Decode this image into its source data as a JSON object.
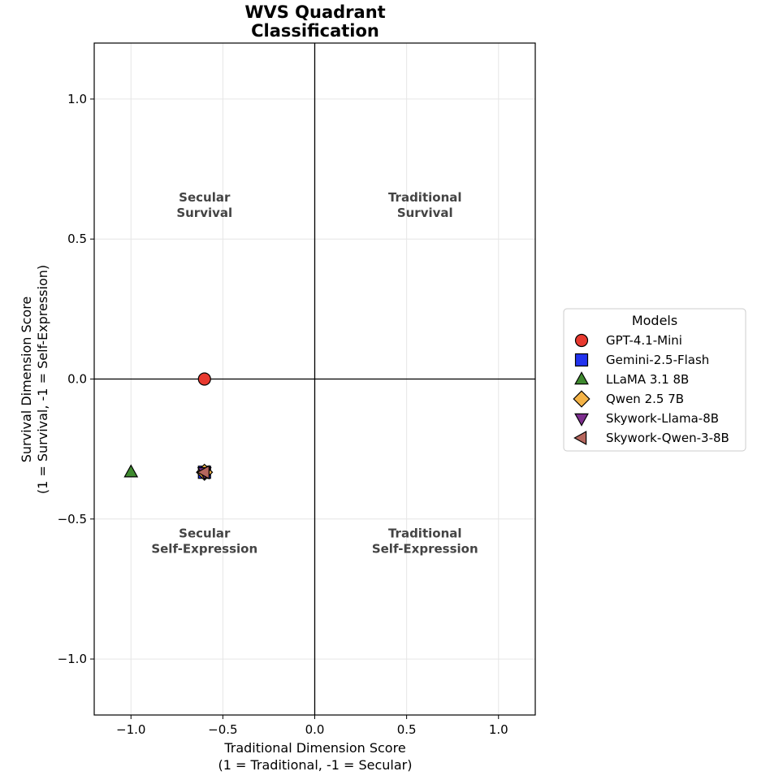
{
  "chart_data": {
    "type": "scatter",
    "title_lines": [
      "WVS Quadrant",
      "Classification"
    ],
    "xlabel_lines": [
      "Traditional Dimension Score",
      "(1 = Traditional, -1 = Secular)"
    ],
    "ylabel_lines": [
      "Survival Dimension Score",
      "(1 = Survival, -1 = Self-Expression)"
    ],
    "xlim": [
      -1.2,
      1.2
    ],
    "ylim": [
      -1.2,
      1.2
    ],
    "x_ticks": [
      -1.0,
      -0.5,
      0.0,
      0.5,
      1.0
    ],
    "y_ticks": [
      -1.0,
      -0.5,
      0.0,
      0.5,
      1.0
    ],
    "x_tick_labels": [
      "−1.0",
      "−0.5",
      "0.0",
      "0.5",
      "1.0"
    ],
    "y_tick_labels": [
      "−1.0",
      "−0.5",
      "0.0",
      "0.5",
      "1.0"
    ],
    "grid": true,
    "reference_lines": {
      "x": 0,
      "y": 0
    },
    "quadrant_labels": [
      {
        "lines": [
          "Secular",
          "Survival"
        ],
        "x": -0.6,
        "y": 0.6
      },
      {
        "lines": [
          "Traditional",
          "Survival"
        ],
        "x": 0.6,
        "y": 0.6
      },
      {
        "lines": [
          "Secular",
          "Self-Expression"
        ],
        "x": -0.6,
        "y": -0.6
      },
      {
        "lines": [
          "Traditional",
          "Self-Expression"
        ],
        "x": 0.6,
        "y": -0.6
      }
    ],
    "legend": {
      "title": "Models",
      "placement": "outside-right"
    },
    "series": [
      {
        "name": "GPT-4.1-Mini",
        "marker": "circle",
        "color": "#e8392f",
        "x": -0.6,
        "y": 0.0
      },
      {
        "name": "Gemini-2.5-Flash",
        "marker": "square",
        "color": "#2233ee",
        "x": -0.6,
        "y": -0.333
      },
      {
        "name": "LLaMA 3.1 8B",
        "marker": "triangle-up",
        "color": "#3f8a2f",
        "x": -1.0,
        "y": -0.333
      },
      {
        "name": "Qwen 2.5 7B",
        "marker": "diamond",
        "color": "#f4b347",
        "x": -0.6,
        "y": -0.333
      },
      {
        "name": "Skywork-Llama-8B",
        "marker": "triangle-down",
        "color": "#7d2e8e",
        "x": -0.6,
        "y": -0.333
      },
      {
        "name": "Skywork-Qwen-3-8B",
        "marker": "triangle-left",
        "color": "#b5665d",
        "x": -0.6,
        "y": -0.333
      }
    ]
  }
}
